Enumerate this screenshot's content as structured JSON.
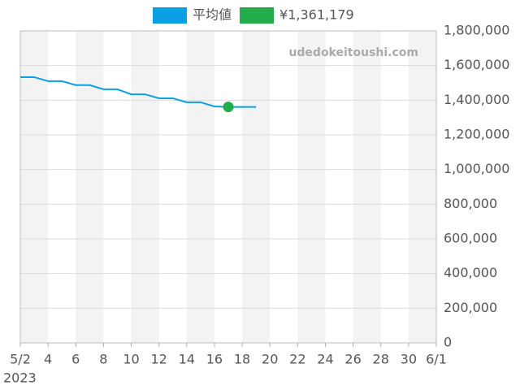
{
  "chart_data": {
    "type": "line",
    "watermark": "udedokeitoushi.com",
    "x_sublabel": "2023",
    "x": [
      0,
      1,
      2,
      3,
      4,
      5,
      6,
      7,
      8,
      9,
      10,
      11,
      12,
      13,
      14,
      15,
      16,
      17
    ],
    "series": [
      {
        "name": "平均値",
        "color": "#0aa0e6",
        "kind": "line",
        "x": [
          0,
          1,
          2,
          3,
          4,
          5,
          6,
          7,
          8,
          9,
          10,
          11,
          12,
          13,
          14,
          15,
          16,
          17
        ],
        "values": [
          1533000,
          1533000,
          1510000,
          1510000,
          1487000,
          1487000,
          1463000,
          1463000,
          1434000,
          1434000,
          1411000,
          1411000,
          1388000,
          1388000,
          1364000,
          1361179,
          1361179,
          1361179
        ]
      },
      {
        "name": "¥1,361,179",
        "color": "#22ad4a",
        "kind": "point",
        "x": [
          15
        ],
        "values": [
          1361179
        ]
      }
    ],
    "xlim": [
      0,
      30
    ],
    "xticks": [
      {
        "value": 0,
        "label": "5/2"
      },
      {
        "value": 2,
        "label": "4"
      },
      {
        "value": 4,
        "label": "6"
      },
      {
        "value": 6,
        "label": "8"
      },
      {
        "value": 8,
        "label": "10"
      },
      {
        "value": 10,
        "label": "12"
      },
      {
        "value": 12,
        "label": "14"
      },
      {
        "value": 14,
        "label": "16"
      },
      {
        "value": 16,
        "label": "18"
      },
      {
        "value": 18,
        "label": "20"
      },
      {
        "value": 20,
        "label": "22"
      },
      {
        "value": 22,
        "label": "24"
      },
      {
        "value": 24,
        "label": "26"
      },
      {
        "value": 26,
        "label": "28"
      },
      {
        "value": 28,
        "label": "30"
      },
      {
        "value": 30,
        "label": "6/1"
      }
    ],
    "ylim": [
      0,
      1800000
    ],
    "yticks": [
      0,
      {
        "value": 200000,
        "label": "200,000"
      },
      {
        "value": 400000,
        "label": "400,000"
      },
      {
        "value": 600000,
        "label": "600,000"
      },
      {
        "value": 800000,
        "label": "800,000"
      },
      {
        "value": 1000000,
        "label": "1,000,000"
      },
      {
        "value": 1200000,
        "label": "1,200,000"
      },
      {
        "value": 1400000,
        "label": "1,400,000"
      },
      {
        "value": 1600000,
        "label": "1,600,000"
      },
      {
        "value": 1800000,
        "label": "1,800,000"
      }
    ],
    "grid": true
  }
}
